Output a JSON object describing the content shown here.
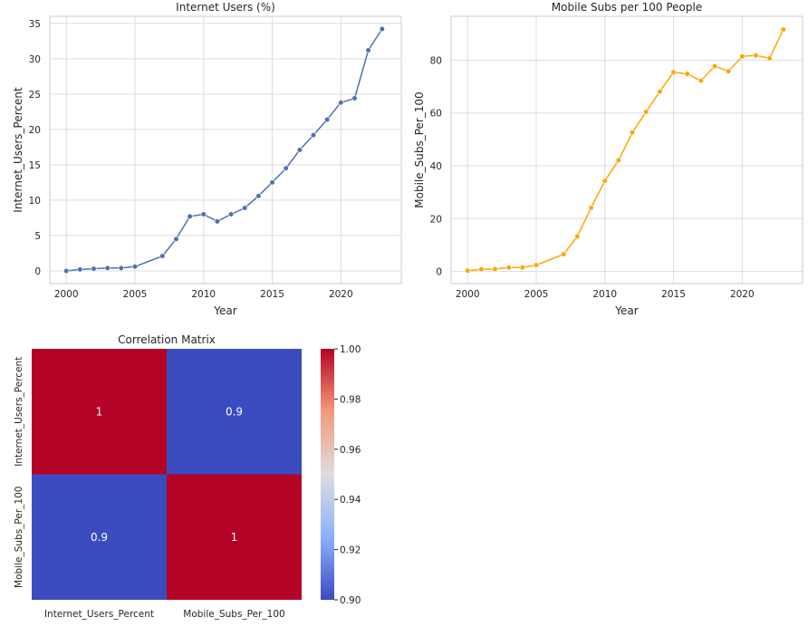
{
  "chart_data": [
    {
      "type": "line",
      "title": "Internet Users (%)",
      "xlabel": "Year",
      "ylabel": "Internet_Users_Percent",
      "color": "#4c72b0",
      "xlim": [
        1998.8,
        2024.4
      ],
      "ylim": [
        -1.8,
        36.0
      ],
      "xticks": [
        2000,
        2005,
        2010,
        2015,
        2020
      ],
      "yticks": [
        0,
        5,
        10,
        15,
        20,
        25,
        30,
        35
      ],
      "grid": true,
      "x": [
        2000,
        2001,
        2002,
        2003,
        2004,
        2005,
        2007,
        2008,
        2009,
        2010,
        2011,
        2012,
        2013,
        2014,
        2015,
        2016,
        2017,
        2018,
        2019,
        2020,
        2021,
        2022,
        2023
      ],
      "y": [
        0.0,
        0.2,
        0.3,
        0.4,
        0.4,
        0.6,
        2.1,
        4.5,
        7.7,
        8.0,
        7.0,
        8.0,
        8.9,
        10.6,
        12.5,
        14.5,
        17.1,
        19.2,
        21.4,
        23.8,
        24.4,
        31.2,
        34.2
      ]
    },
    {
      "type": "line",
      "title": "Mobile Subs per 100 People",
      "xlabel": "Year",
      "ylabel": "Mobile_Subs_Per_100",
      "color": "#ffa500",
      "xlim": [
        1998.8,
        2024.4
      ],
      "ylim": [
        -4.6,
        96.6
      ],
      "xticks": [
        2000,
        2005,
        2010,
        2015,
        2020
      ],
      "yticks": [
        0,
        20,
        40,
        60,
        80
      ],
      "grid": true,
      "x": [
        2000,
        2001,
        2002,
        2003,
        2004,
        2005,
        2007,
        2008,
        2009,
        2010,
        2011,
        2012,
        2013,
        2014,
        2015,
        2016,
        2017,
        2018,
        2019,
        2020,
        2021,
        2022,
        2023
      ],
      "y": [
        0.3,
        0.8,
        0.9,
        1.5,
        1.5,
        2.4,
        6.5,
        13.3,
        24.1,
        34.3,
        42.1,
        52.6,
        60.4,
        68.1,
        75.4,
        74.8,
        72.2,
        77.7,
        75.8,
        81.4,
        81.8,
        80.7,
        91.6
      ]
    },
    {
      "type": "heatmap",
      "title": "Correlation Matrix",
      "row_labels": [
        "Internet_Users_Percent",
        "Mobile_Subs_Per_100"
      ],
      "col_labels": [
        "Internet_Users_Percent",
        "Mobile_Subs_Per_100"
      ],
      "values": [
        [
          1,
          0.9
        ],
        [
          0.9,
          1
        ]
      ],
      "annotations": [
        [
          "1",
          "0.9"
        ],
        [
          "0.9",
          "1"
        ]
      ],
      "colormap": "coolwarm",
      "colorbar_range": [
        0.9,
        1.0
      ],
      "colorbar_ticks": [
        "0.90",
        "0.92",
        "0.94",
        "0.96",
        "0.98",
        "1.00"
      ]
    }
  ]
}
